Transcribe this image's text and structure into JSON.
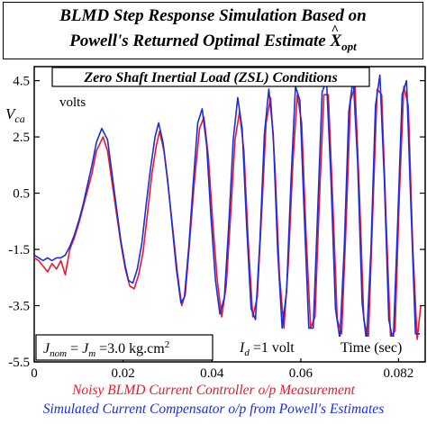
{
  "title": {
    "line1": "BLMD Step Response Simulation Based on",
    "line2_prefix": "Powell's Returned Optimal Estimate ",
    "line2_symbol": "X",
    "line2_subscript": "opt"
  },
  "annotations": {
    "condition_box": "Zero Shaft Inertial Load (ZSL) Conditions",
    "ylabel_symbol": "V",
    "ylabel_subscript": "ca",
    "units": "volts",
    "inertia_box": "J_nom = J_m =3.0 kg.cm^2",
    "inertia_j1": "J",
    "inertia_sub1": "nom",
    "inertia_eq1": " = ",
    "inertia_j2": "J",
    "inertia_sub2": "m",
    "inertia_rest": " =3.0 kg.cm",
    "inertia_sup": "2",
    "step_symbol": "I",
    "step_subscript": "d",
    "step_rest": " =1 volt",
    "time_label": "Time (sec)"
  },
  "captions": {
    "red": "Noisy BLMD Current Controller o/p Measurement",
    "blue": "Simulated Current Compensator o/p from Powell's Estimates"
  },
  "colors": {
    "measurement": "#e8192c",
    "simulation": "#1a2ed8",
    "axes": "#000000"
  },
  "chart_data": {
    "type": "line",
    "title": "BLMD Step Response Simulation Based on Powell's Returned Optimal Estimate X_opt",
    "xlabel": "Time (sec)",
    "ylabel": "V_ca",
    "xlim": [
      0,
      0.088
    ],
    "ylim": [
      -5.5,
      5.0
    ],
    "x_ticks": [
      0,
      0.02,
      0.04,
      0.06,
      0.082
    ],
    "x_tick_labels": [
      "0",
      "0.02",
      "0.04",
      "0.06",
      "0.082"
    ],
    "y_ticks": [
      4.5,
      2.5,
      0.5,
      -1.5,
      -3.5,
      -5.5
    ],
    "y_tick_labels": [
      "4.5",
      "2.5",
      "0.5",
      "-1.5",
      "-3.5",
      "-5.5"
    ],
    "grid": false,
    "legend": "captions below plot",
    "series": [
      {
        "name": "Noisy BLMD Current Controller o/p Measurement",
        "color": "#e8192c",
        "points": [
          [
            0.0,
            -1.8
          ],
          [
            0.001,
            -1.9
          ],
          [
            0.002,
            -2.1
          ],
          [
            0.003,
            -2.3
          ],
          [
            0.004,
            -2.0
          ],
          [
            0.005,
            -2.2
          ],
          [
            0.006,
            -1.9
          ],
          [
            0.007,
            -2.4
          ],
          [
            0.008,
            -1.5
          ],
          [
            0.009,
            -1.1
          ],
          [
            0.01,
            -0.6
          ],
          [
            0.011,
            0.0
          ],
          [
            0.012,
            0.6
          ],
          [
            0.013,
            1.2
          ],
          [
            0.014,
            2.0
          ],
          [
            0.0155,
            2.5
          ],
          [
            0.0165,
            2.0
          ],
          [
            0.0175,
            0.9
          ],
          [
            0.0185,
            -0.2
          ],
          [
            0.0195,
            -1.3
          ],
          [
            0.0205,
            -2.2
          ],
          [
            0.0215,
            -2.8
          ],
          [
            0.0225,
            -2.9
          ],
          [
            0.0235,
            -2.4
          ],
          [
            0.0245,
            -1.6
          ],
          [
            0.0255,
            -0.2
          ],
          [
            0.0265,
            1.2
          ],
          [
            0.0275,
            2.2
          ],
          [
            0.0282,
            2.7
          ],
          [
            0.0292,
            2.0
          ],
          [
            0.0302,
            0.7
          ],
          [
            0.0312,
            -0.8
          ],
          [
            0.0322,
            -2.3
          ],
          [
            0.0332,
            -3.5
          ],
          [
            0.034,
            -3.1
          ],
          [
            0.035,
            -1.2
          ],
          [
            0.036,
            0.8
          ],
          [
            0.0372,
            2.8
          ],
          [
            0.0382,
            3.2
          ],
          [
            0.0392,
            1.8
          ],
          [
            0.0402,
            -0.6
          ],
          [
            0.0412,
            -2.6
          ],
          [
            0.0422,
            -3.9
          ],
          [
            0.0432,
            -2.8
          ],
          [
            0.0442,
            -0.3
          ],
          [
            0.0452,
            2.4
          ],
          [
            0.0462,
            3.4
          ],
          [
            0.0472,
            2.0
          ],
          [
            0.0482,
            -1.3
          ],
          [
            0.0492,
            -3.9
          ],
          [
            0.0502,
            -3.2
          ],
          [
            0.0512,
            -0.2
          ],
          [
            0.0522,
            3.0
          ],
          [
            0.0532,
            3.9
          ],
          [
            0.0542,
            1.4
          ],
          [
            0.0552,
            -2.4
          ],
          [
            0.0562,
            -4.3
          ],
          [
            0.0572,
            -2.0
          ],
          [
            0.0582,
            1.5
          ],
          [
            0.0592,
            4.0
          ],
          [
            0.0602,
            3.0
          ],
          [
            0.0612,
            -1.0
          ],
          [
            0.0622,
            -4.3
          ],
          [
            0.0632,
            -3.9
          ],
          [
            0.0642,
            0.3
          ],
          [
            0.0652,
            4.0
          ],
          [
            0.0662,
            4.0
          ],
          [
            0.0672,
            0.2
          ],
          [
            0.0682,
            -4.0
          ],
          [
            0.0692,
            -4.5
          ],
          [
            0.0702,
            -0.6
          ],
          [
            0.0712,
            3.8
          ],
          [
            0.0722,
            4.3
          ],
          [
            0.0732,
            0.5
          ],
          [
            0.0742,
            -4.0
          ],
          [
            0.0752,
            -4.7
          ],
          [
            0.0762,
            -0.2
          ],
          [
            0.0772,
            4.2
          ],
          [
            0.0782,
            4.0
          ],
          [
            0.0792,
            -0.4
          ],
          [
            0.0802,
            -4.6
          ],
          [
            0.0812,
            -4.4
          ],
          [
            0.0822,
            0.5
          ],
          [
            0.0832,
            4.3
          ],
          [
            0.0842,
            3.6
          ],
          [
            0.0852,
            -1.4
          ],
          [
            0.0862,
            -4.7
          ],
          [
            0.087,
            -3.5
          ]
        ]
      },
      {
        "name": "Simulated Current Compensator o/p from Powell's Estimates",
        "color": "#1a2ed8",
        "points": [
          [
            0.0,
            -1.7
          ],
          [
            0.001,
            -1.8
          ],
          [
            0.002,
            -1.9
          ],
          [
            0.003,
            -1.8
          ],
          [
            0.004,
            -1.9
          ],
          [
            0.005,
            -1.8
          ],
          [
            0.006,
            -1.8
          ],
          [
            0.007,
            -1.7
          ],
          [
            0.008,
            -1.4
          ],
          [
            0.009,
            -1.0
          ],
          [
            0.01,
            -0.5
          ],
          [
            0.011,
            0.1
          ],
          [
            0.012,
            0.8
          ],
          [
            0.013,
            1.5
          ],
          [
            0.014,
            2.3
          ],
          [
            0.0152,
            2.8
          ],
          [
            0.0165,
            2.4
          ],
          [
            0.0175,
            1.2
          ],
          [
            0.0185,
            0.0
          ],
          [
            0.0195,
            -1.2
          ],
          [
            0.0205,
            -2.1
          ],
          [
            0.0212,
            -2.6
          ],
          [
            0.0222,
            -2.7
          ],
          [
            0.0232,
            -2.2
          ],
          [
            0.0242,
            -1.3
          ],
          [
            0.0252,
            0.1
          ],
          [
            0.0262,
            1.4
          ],
          [
            0.0272,
            2.5
          ],
          [
            0.028,
            3.0
          ],
          [
            0.029,
            2.3
          ],
          [
            0.03,
            1.0
          ],
          [
            0.031,
            -0.6
          ],
          [
            0.032,
            -2.2
          ],
          [
            0.033,
            -3.4
          ],
          [
            0.0338,
            -3.2
          ],
          [
            0.0348,
            -1.4
          ],
          [
            0.0358,
            0.9
          ],
          [
            0.0368,
            3.0
          ],
          [
            0.0378,
            3.5
          ],
          [
            0.0388,
            2.2
          ],
          [
            0.0398,
            -0.4
          ],
          [
            0.0408,
            -2.6
          ],
          [
            0.0418,
            -3.8
          ],
          [
            0.0428,
            -3.2
          ],
          [
            0.0438,
            -0.6
          ],
          [
            0.0448,
            2.4
          ],
          [
            0.0458,
            3.9
          ],
          [
            0.0468,
            2.8
          ],
          [
            0.0478,
            -0.6
          ],
          [
            0.0488,
            -3.6
          ],
          [
            0.0498,
            -4.0
          ],
          [
            0.0508,
            -1.2
          ],
          [
            0.0518,
            2.6
          ],
          [
            0.0528,
            4.2
          ],
          [
            0.0538,
            2.6
          ],
          [
            0.0548,
            -1.6
          ],
          [
            0.0558,
            -4.3
          ],
          [
            0.0568,
            -3.0
          ],
          [
            0.0578,
            1.0
          ],
          [
            0.0588,
            4.3
          ],
          [
            0.0598,
            3.8
          ],
          [
            0.0608,
            -0.4
          ],
          [
            0.0618,
            -4.3
          ],
          [
            0.0628,
            -4.3
          ],
          [
            0.0638,
            -0.2
          ],
          [
            0.0648,
            4.1
          ],
          [
            0.0658,
            4.5
          ],
          [
            0.0668,
            1.0
          ],
          [
            0.0678,
            -3.6
          ],
          [
            0.0688,
            -4.7
          ],
          [
            0.0698,
            -1.4
          ],
          [
            0.0708,
            3.4
          ],
          [
            0.0718,
            4.6
          ],
          [
            0.0728,
            1.6
          ],
          [
            0.0738,
            -3.4
          ],
          [
            0.0748,
            -4.8
          ],
          [
            0.0758,
            -1.5
          ],
          [
            0.0768,
            3.6
          ],
          [
            0.0778,
            4.7
          ],
          [
            0.0788,
            1.0
          ],
          [
            0.0798,
            -4.0
          ],
          [
            0.0808,
            -4.8
          ],
          [
            0.0818,
            -0.6
          ],
          [
            0.0828,
            4.0
          ],
          [
            0.0838,
            4.5
          ],
          [
            0.0848,
            0.0
          ],
          [
            0.0858,
            -4.5
          ],
          [
            0.0868,
            -4.5
          ]
        ]
      }
    ]
  }
}
